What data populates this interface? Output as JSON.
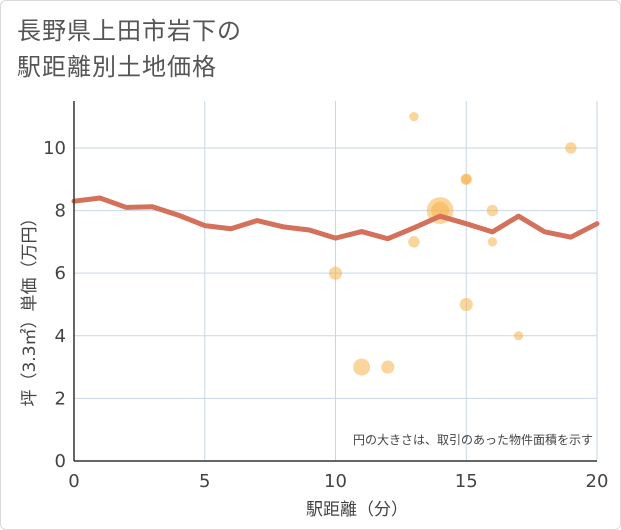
{
  "title_lines": [
    "長野県上田市岩下の",
    "駅距離別土地価格"
  ],
  "chart_data": {
    "type": "scatter",
    "title": "長野県上田市岩下の駅距離別土地価格",
    "xlabel": "駅距離（分）",
    "ylabel": "坪（3.3㎡）単価（万円）",
    "xlim": [
      0,
      20
    ],
    "ylim": [
      0,
      11.5
    ],
    "x_ticks": [
      0,
      5,
      10,
      15,
      20
    ],
    "y_ticks": [
      0,
      2,
      4,
      6,
      8,
      10
    ],
    "grid": true,
    "note": "円の大きさは、取引のあった物件面積を示す",
    "scatter": [
      {
        "x": 10,
        "y": 6,
        "size": 1.2
      },
      {
        "x": 11,
        "y": 3,
        "size": 2.0
      },
      {
        "x": 12,
        "y": 3,
        "size": 1.2
      },
      {
        "x": 13,
        "y": 11,
        "size": 0.6
      },
      {
        "x": 13,
        "y": 7,
        "size": 0.9
      },
      {
        "x": 14,
        "y": 8,
        "size": 5.0
      },
      {
        "x": 14,
        "y": 8,
        "size": 2.2
      },
      {
        "x": 15,
        "y": 9,
        "size": 0.9
      },
      {
        "x": 15,
        "y": 9,
        "size": 0.7
      },
      {
        "x": 15,
        "y": 5,
        "size": 1.2
      },
      {
        "x": 16,
        "y": 8,
        "size": 0.9
      },
      {
        "x": 16,
        "y": 7,
        "size": 0.6
      },
      {
        "x": 17,
        "y": 4,
        "size": 0.6
      },
      {
        "x": 19,
        "y": 10,
        "size": 0.9
      }
    ],
    "trend_line": {
      "x": [
        0,
        1,
        2,
        3,
        4,
        5,
        6,
        7,
        8,
        9,
        10,
        11,
        12,
        13,
        14,
        15,
        16,
        17,
        18,
        19,
        20
      ],
      "y": [
        8.3,
        8.4,
        8.1,
        8.12,
        7.85,
        7.52,
        7.42,
        7.68,
        7.48,
        7.38,
        7.12,
        7.33,
        7.1,
        7.45,
        7.82,
        7.58,
        7.32,
        7.82,
        7.32,
        7.15,
        7.58
      ]
    },
    "colors": {
      "bubble": "#f5b34a",
      "line": "#d4715a",
      "grid": "#c7d7e6"
    }
  }
}
